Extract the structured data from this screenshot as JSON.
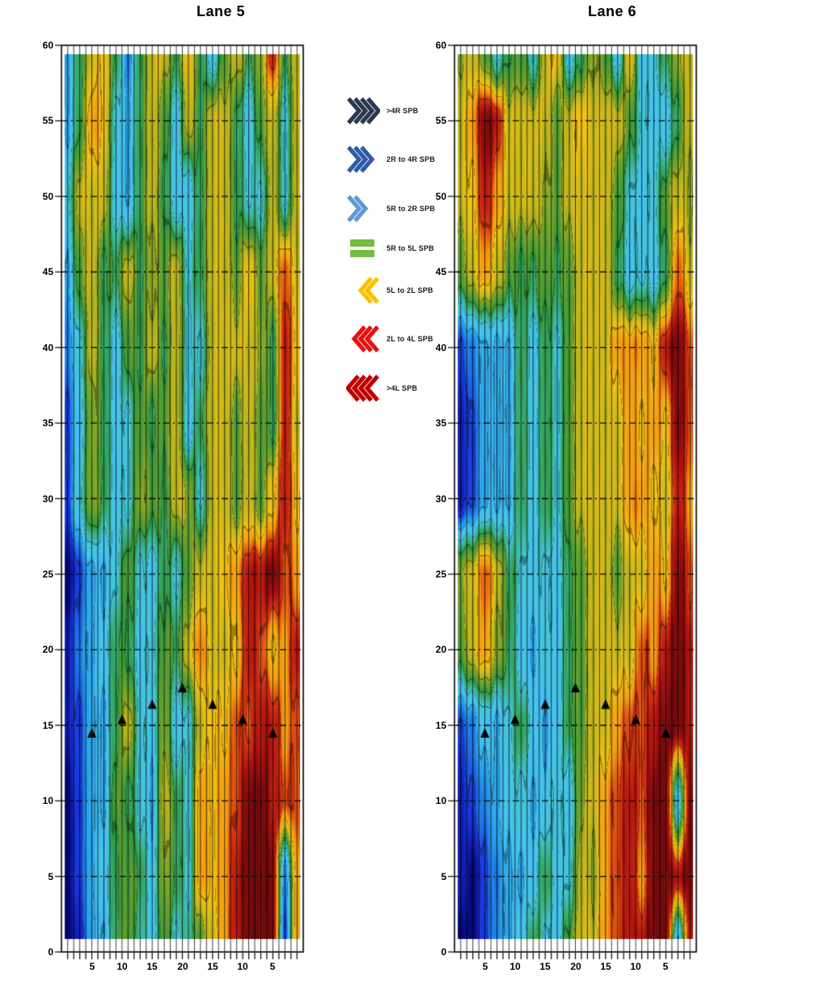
{
  "figure": {
    "background": "#ffffff",
    "description": "Two vertical lane contour maps of SPB ball-path categories with black breakpoint triangles and dash-dot distance gridlines"
  },
  "legend": {
    "items": [
      {
        "label": ">4R SPB",
        "icon": "chevrons-right-4-icon",
        "color": "#2B3A52",
        "chevrons": 4,
        "direction": "right"
      },
      {
        "label": "2R to 4R SPB",
        "icon": "chevrons-right-3-icon",
        "color": "#2E5DA8",
        "chevrons": 3,
        "direction": "right"
      },
      {
        "label": "5R to 2R SPB",
        "icon": "chevrons-right-2-icon",
        "color": "#5B9BD5",
        "chevrons": 2,
        "direction": "right"
      },
      {
        "label": "5R to 5L SPB",
        "icon": "equal-bars-icon",
        "color": "#76BC43",
        "chevrons": 0,
        "direction": "none"
      },
      {
        "label": "5L to 2L SPB",
        "icon": "chevrons-left-2-icon",
        "color": "#FFC000",
        "chevrons": 2,
        "direction": "left"
      },
      {
        "label": "2L to 4L SPB",
        "icon": "chevrons-left-3-icon",
        "color": "#E81212",
        "chevrons": 3,
        "direction": "left"
      },
      {
        "label": ">4L SPB",
        "icon": "chevrons-left-4-icon",
        "color": "#C00000",
        "chevrons": 4,
        "direction": "left"
      }
    ]
  },
  "colormap": {
    "note": "value scale -4..+4 maps legend categories >4R SPB (navy) through 5R-5L (green) to >4L SPB (dark red)",
    "stops": [
      [
        -4.0,
        "#06087C"
      ],
      [
        -3.2,
        "#1932DC"
      ],
      [
        -2.4,
        "#2396E8"
      ],
      [
        -1.7,
        "#46C2F0"
      ],
      [
        -1.0,
        "#44C4D8"
      ],
      [
        -0.4,
        "#3AAE78"
      ],
      [
        0.0,
        "#2F9640"
      ],
      [
        0.7,
        "#6EA32C"
      ],
      [
        1.4,
        "#C8B81E"
      ],
      [
        1.9,
        "#F0C214"
      ],
      [
        2.5,
        "#F49B12"
      ],
      [
        3.0,
        "#DC3C12"
      ],
      [
        3.5,
        "#B01410"
      ],
      [
        4.0,
        "#700A0C"
      ]
    ]
  },
  "chart_data": [
    {
      "type": "heatmap",
      "title": "Lane 5",
      "x_axis": {
        "unit": "board",
        "boards": 39,
        "range": [
          0.5,
          39.5
        ],
        "tick_labels": [
          {
            "board": 5,
            "label": "5"
          },
          {
            "board": 10,
            "label": "10"
          },
          {
            "board": 15,
            "label": "15"
          },
          {
            "board": 20,
            "label": "20"
          },
          {
            "board": 25,
            "label": "15"
          },
          {
            "board": 30,
            "label": "10"
          },
          {
            "board": 35,
            "label": "5"
          }
        ]
      },
      "y_axis": {
        "unit": "feet",
        "range": [
          0,
          60
        ],
        "ticks": [
          0,
          5,
          10,
          15,
          20,
          25,
          30,
          35,
          40,
          45,
          50,
          55,
          60
        ],
        "gridlines": [
          5,
          10,
          15,
          20,
          25,
          30,
          35,
          40,
          45,
          50,
          55
        ],
        "grid_style": "dash-dot"
      },
      "grid": {
        "rows_y": [
          59.5,
          55,
          50,
          45,
          40,
          35,
          30,
          25,
          20,
          15,
          10,
          5,
          0.5
        ],
        "cols_boards": [
          1,
          3,
          5,
          7,
          9,
          11,
          13,
          15,
          17,
          19,
          21,
          23,
          25,
          27,
          29,
          31,
          33,
          35,
          37,
          39
        ],
        "values": [
          [
            -2,
            0,
            1.5,
            2,
            0,
            -2.5,
            0,
            1.5,
            1.5,
            0,
            2,
            0,
            -1.5,
            0.5,
            1.5,
            0,
            1,
            3.5,
            0,
            1.5
          ],
          [
            -2,
            0,
            2.5,
            2,
            -1,
            -2,
            0,
            1.5,
            0.5,
            -1.5,
            1.5,
            0,
            1.5,
            1.5,
            0,
            -1.5,
            0.5,
            1.5,
            -1,
            1.5
          ],
          [
            -1,
            1.5,
            1.5,
            1.5,
            -1.5,
            -2,
            0,
            1.5,
            0,
            -1.5,
            -1.5,
            0,
            1.5,
            1.5,
            0,
            -1,
            -1,
            1.5,
            -1,
            1.5
          ],
          [
            -2,
            0.5,
            1.5,
            0,
            0,
            1.5,
            0,
            1,
            0.5,
            1.5,
            -1,
            0,
            1.5,
            1.5,
            0.5,
            2,
            0.5,
            1.5,
            3,
            1.5
          ],
          [
            -2.5,
            -1,
            1.5,
            0,
            -1.5,
            0.5,
            0,
            1.5,
            0,
            1.5,
            -1,
            -1,
            1.5,
            1.5,
            1.5,
            1.5,
            1,
            0,
            3.5,
            2
          ],
          [
            -3,
            -1.5,
            1,
            0,
            -1.5,
            -1,
            0.5,
            0,
            0.5,
            1.5,
            -1.5,
            0,
            1.5,
            1.5,
            0.5,
            1.5,
            0.5,
            0,
            3.5,
            1.5
          ],
          [
            -3,
            -1,
            1,
            0,
            -1.5,
            -1,
            1,
            0.5,
            0,
            1.5,
            1,
            -1,
            1.5,
            1.5,
            0.5,
            1.5,
            0.5,
            2,
            3.5,
            2
          ],
          [
            -4,
            -3,
            -2,
            -2,
            -1,
            0.5,
            -1,
            -1.5,
            0,
            -1,
            0.5,
            1.5,
            1.5,
            2,
            2.5,
            3.5,
            3.5,
            4,
            3,
            2.5
          ],
          [
            -3.5,
            -2.5,
            -2,
            -1.5,
            0,
            0,
            -1.5,
            -1,
            0.5,
            0,
            1.5,
            2.8,
            1.5,
            1.5,
            2,
            3.5,
            3,
            2,
            2.5,
            3.5
          ],
          [
            -3.5,
            -3,
            -2,
            -2,
            0,
            1.5,
            -1,
            -1.5,
            1,
            -1.5,
            -1,
            1.5,
            2,
            2,
            3,
            3,
            3.5,
            3.5,
            2.5,
            3
          ],
          [
            -4,
            -3,
            -2,
            -2,
            0.5,
            0,
            -1,
            -2,
            1.5,
            0,
            -1,
            2.5,
            2,
            2.5,
            3,
            4,
            4,
            3.5,
            3,
            3
          ],
          [
            -4,
            -3,
            -2,
            -1.5,
            0,
            0.5,
            0,
            -1.5,
            1,
            0,
            -1,
            2.5,
            2,
            2.5,
            3.5,
            4,
            4,
            4,
            -2.5,
            2.5
          ],
          [
            -4,
            -3.5,
            -2,
            -2,
            0,
            0.5,
            -0.5,
            -1.5,
            0.5,
            -1,
            -0.5,
            0.5,
            1.5,
            2.5,
            3.5,
            4,
            4,
            4,
            -3,
            2.5
          ]
        ]
      },
      "markers": {
        "symbol": "triangle-up",
        "color": "#000000",
        "points": [
          {
            "board": 5,
            "distance": 14.4
          },
          {
            "board": 10,
            "distance": 15.3
          },
          {
            "board": 15,
            "distance": 16.3
          },
          {
            "board": 20,
            "distance": 17.4
          },
          {
            "board": 25,
            "distance": 16.3
          },
          {
            "board": 30,
            "distance": 15.3
          },
          {
            "board": 35,
            "distance": 14.4
          }
        ]
      }
    },
    {
      "type": "heatmap",
      "title": "Lane 6",
      "x_axis": {
        "unit": "board",
        "boards": 39,
        "range": [
          0.5,
          39.5
        ],
        "tick_labels": [
          {
            "board": 5,
            "label": "5"
          },
          {
            "board": 10,
            "label": "10"
          },
          {
            "board": 15,
            "label": "15"
          },
          {
            "board": 20,
            "label": "20"
          },
          {
            "board": 25,
            "label": "15"
          },
          {
            "board": 30,
            "label": "10"
          },
          {
            "board": 35,
            "label": "5"
          }
        ]
      },
      "y_axis": {
        "unit": "feet",
        "range": [
          0,
          60
        ],
        "ticks": [
          0,
          5,
          10,
          15,
          20,
          25,
          30,
          35,
          40,
          45,
          50,
          55,
          60
        ],
        "gridlines": [
          5,
          10,
          15,
          20,
          25,
          30,
          35,
          40,
          45,
          50,
          55
        ],
        "grid_style": "dash-dot"
      },
      "grid": {
        "rows_y": [
          59.5,
          55,
          50,
          45,
          40,
          35,
          30,
          25,
          20,
          15,
          10,
          5,
          0.5
        ],
        "cols_boards": [
          1,
          3,
          5,
          7,
          9,
          11,
          13,
          15,
          17,
          19,
          21,
          23,
          25,
          27,
          29,
          31,
          33,
          35,
          37,
          39
        ],
        "values": [
          [
            1,
            1.5,
            0.5,
            -1,
            0,
            0.5,
            -1,
            1.5,
            2,
            -1.5,
            0,
            1,
            0.5,
            -1.5,
            2,
            -1.5,
            -1,
            0,
            1,
            1.5
          ],
          [
            1.5,
            2.5,
            4,
            3.5,
            1.5,
            1.5,
            1.5,
            1.5,
            0.5,
            1.5,
            2,
            1.5,
            1.5,
            1.5,
            0.5,
            -1,
            -1.5,
            -1.5,
            0,
            1.5
          ],
          [
            1.5,
            2,
            3.5,
            2.5,
            1.5,
            1.5,
            1.5,
            1,
            0.5,
            1.5,
            1.5,
            1.5,
            1.5,
            0.5,
            -1,
            -1.5,
            -1,
            0.5,
            1.5,
            1
          ],
          [
            0.5,
            1.5,
            2.5,
            1.5,
            0.5,
            0,
            0,
            0.5,
            0,
            0.5,
            1.5,
            1.5,
            1.5,
            0,
            -1.5,
            -1,
            -1.5,
            0,
            3,
            1.5
          ],
          [
            -3,
            -2.5,
            -2,
            -2,
            -2,
            0,
            -1.5,
            0,
            -1,
            0.5,
            1.5,
            1.5,
            1.5,
            2.5,
            2.5,
            2.5,
            2,
            3.5,
            4,
            3
          ],
          [
            -3.5,
            -3,
            -2,
            -2,
            -2,
            0,
            -1.5,
            0,
            -1,
            0.5,
            1.5,
            1.5,
            1.5,
            1.5,
            2.5,
            2,
            2.5,
            2,
            4,
            3
          ],
          [
            -3.5,
            -3,
            -2,
            -2,
            -2,
            0,
            -1.5,
            0,
            -1,
            0.5,
            1.5,
            1.5,
            1.5,
            1.5,
            2.5,
            2.5,
            2,
            1.5,
            3.5,
            2.5
          ],
          [
            1,
            1.5,
            3,
            1.5,
            0,
            -1,
            -1.5,
            -1,
            -1.5,
            0,
            0.5,
            1.5,
            1.5,
            0.5,
            1.5,
            1.5,
            2.5,
            2,
            4,
            3
          ],
          [
            0.5,
            1.5,
            2.5,
            1,
            0,
            -1.5,
            -2,
            -1,
            -1.5,
            0,
            0.5,
            1.5,
            1.5,
            1.5,
            1.5,
            3,
            2.5,
            3.5,
            4,
            3.5
          ],
          [
            -3,
            -2.5,
            -1.5,
            -2,
            -1,
            0,
            -1.5,
            -2,
            -1.5,
            0,
            0.5,
            1.5,
            1.5,
            2.5,
            3,
            3,
            3.5,
            4,
            4,
            3.5
          ],
          [
            -3.5,
            -3,
            -2.5,
            -2,
            -1.5,
            -1,
            -2,
            -1.5,
            -1,
            -1.5,
            1,
            1.5,
            2.5,
            3,
            3.5,
            3,
            4,
            4,
            -1.5,
            4
          ],
          [
            -3.5,
            -4,
            -3,
            -2.5,
            -2,
            -2,
            -1.5,
            0,
            -1.5,
            -1,
            1.5,
            1,
            2.5,
            3,
            3.5,
            2.5,
            4,
            4,
            3.5,
            4
          ],
          [
            -4,
            -4,
            -3,
            -2.5,
            -2,
            -1.5,
            0,
            -1,
            -1.5,
            0.5,
            1.5,
            1.5,
            2.5,
            3,
            3.5,
            3.5,
            4,
            4,
            -2,
            3.5
          ]
        ]
      },
      "markers": {
        "symbol": "triangle-up",
        "color": "#000000",
        "points": [
          {
            "board": 5,
            "distance": 14.4
          },
          {
            "board": 10,
            "distance": 15.3
          },
          {
            "board": 15,
            "distance": 16.3
          },
          {
            "board": 20,
            "distance": 17.4
          },
          {
            "board": 25,
            "distance": 16.3
          },
          {
            "board": 30,
            "distance": 15.3
          },
          {
            "board": 35,
            "distance": 14.4
          }
        ]
      }
    }
  ]
}
